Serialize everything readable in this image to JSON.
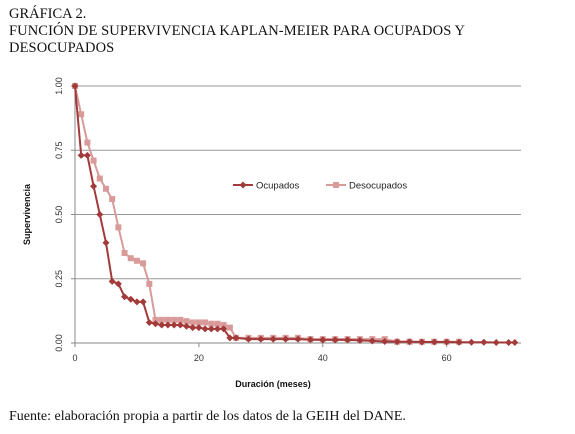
{
  "figure": {
    "label": "GRÁFICA 2.",
    "title": "FUNCIÓN DE SUPERVIVENCIA KAPLAN-MEIER PARA OCUPADOS Y DESOCUPADOS",
    "source": "Fuente: elaboración propia a partir de los datos de la GEIH del DANE."
  },
  "chart_data": {
    "type": "line",
    "xlabel": "Duración (meses)",
    "ylabel": "Supervivencia",
    "xlim": [
      0,
      72
    ],
    "ylim": [
      0,
      1
    ],
    "x_ticks": [
      0,
      20,
      40,
      60
    ],
    "x_tick_labels": [
      "0",
      "20",
      "40",
      "60"
    ],
    "y_ticks": [
      0,
      0.25,
      0.5,
      0.75,
      1
    ],
    "y_tick_labels": [
      "0.00",
      "0.25",
      "0.50",
      "0.75",
      "1.00"
    ],
    "grid": "horizontal",
    "legend": "center-right",
    "series": [
      {
        "name": "Ocupados",
        "color": "#a33a3a",
        "marker": "diamond",
        "points": [
          [
            0,
            1
          ],
          [
            1,
            0.73
          ],
          [
            2,
            0.73
          ],
          [
            3,
            0.61
          ],
          [
            4,
            0.5
          ],
          [
            5,
            0.39
          ],
          [
            6,
            0.24
          ],
          [
            7,
            0.23
          ],
          [
            8,
            0.18
          ],
          [
            9,
            0.17
          ],
          [
            10,
            0.16
          ],
          [
            11,
            0.16
          ],
          [
            12,
            0.08
          ],
          [
            13,
            0.075
          ],
          [
            14,
            0.07
          ],
          [
            15,
            0.07
          ],
          [
            16,
            0.07
          ],
          [
            17,
            0.07
          ],
          [
            18,
            0.065
          ],
          [
            19,
            0.06
          ],
          [
            20,
            0.06
          ],
          [
            21,
            0.055
          ],
          [
            22,
            0.055
          ],
          [
            23,
            0.055
          ],
          [
            24,
            0.055
          ],
          [
            25,
            0.02
          ],
          [
            26,
            0.02
          ],
          [
            28,
            0.015
          ],
          [
            30,
            0.015
          ],
          [
            32,
            0.015
          ],
          [
            34,
            0.015
          ],
          [
            36,
            0.015
          ],
          [
            38,
            0.013
          ],
          [
            40,
            0.012
          ],
          [
            42,
            0.012
          ],
          [
            44,
            0.012
          ],
          [
            46,
            0.01
          ],
          [
            48,
            0.008
          ],
          [
            50,
            0.006
          ],
          [
            52,
            0.005
          ],
          [
            54,
            0.005
          ],
          [
            56,
            0.004
          ],
          [
            58,
            0.004
          ],
          [
            60,
            0.004
          ],
          [
            62,
            0.003
          ],
          [
            64,
            0.003
          ],
          [
            66,
            0.003
          ],
          [
            68,
            0.002
          ],
          [
            70,
            0.002
          ],
          [
            71,
            0.002
          ]
        ]
      },
      {
        "name": "Desocupados",
        "color": "#d99a9a",
        "marker": "square",
        "points": [
          [
            0,
            1
          ],
          [
            1,
            0.89
          ],
          [
            2,
            0.78
          ],
          [
            3,
            0.71
          ],
          [
            4,
            0.64
          ],
          [
            5,
            0.6
          ],
          [
            6,
            0.56
          ],
          [
            7,
            0.45
          ],
          [
            8,
            0.35
          ],
          [
            9,
            0.33
          ],
          [
            10,
            0.32
          ],
          [
            11,
            0.31
          ],
          [
            12,
            0.23
          ],
          [
            13,
            0.09
          ],
          [
            14,
            0.09
          ],
          [
            15,
            0.09
          ],
          [
            16,
            0.09
          ],
          [
            17,
            0.09
          ],
          [
            18,
            0.085
          ],
          [
            19,
            0.08
          ],
          [
            20,
            0.08
          ],
          [
            21,
            0.08
          ],
          [
            22,
            0.075
          ],
          [
            23,
            0.075
          ],
          [
            24,
            0.07
          ],
          [
            25,
            0.06
          ],
          [
            26,
            0.02
          ],
          [
            28,
            0.02
          ],
          [
            30,
            0.02
          ],
          [
            32,
            0.02
          ],
          [
            34,
            0.02
          ],
          [
            36,
            0.02
          ],
          [
            38,
            0.015
          ],
          [
            40,
            0.015
          ],
          [
            42,
            0.015
          ],
          [
            44,
            0.015
          ],
          [
            46,
            0.015
          ],
          [
            48,
            0.015
          ],
          [
            50,
            0.015
          ],
          [
            52,
            0.005
          ],
          [
            54,
            0.005
          ],
          [
            56,
            0.005
          ],
          [
            58,
            0.005
          ],
          [
            60,
            0.005
          ],
          [
            62,
            0.005
          ]
        ]
      }
    ]
  }
}
